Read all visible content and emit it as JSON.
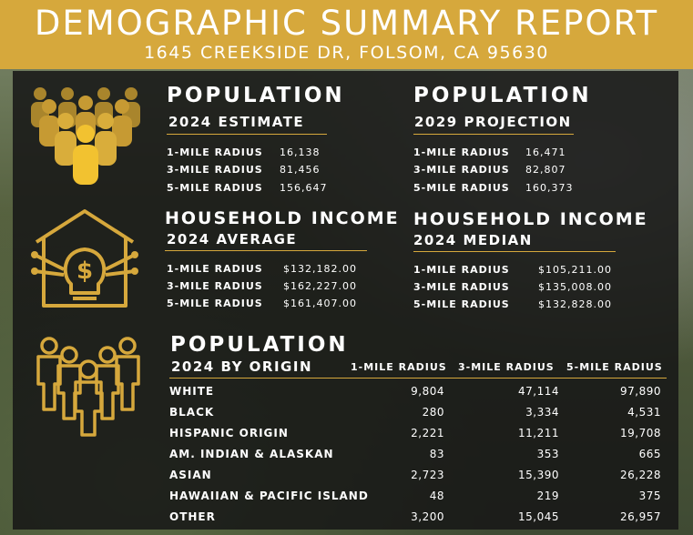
{
  "header": {
    "title": "DEMOGRAPHIC SUMMARY REPORT",
    "address": "1645 CREEKSIDE DR, FOLSOM, CA 95630"
  },
  "colors": {
    "accent": "#d6a83c",
    "panel": "#161616",
    "text": "#ffffff"
  },
  "pop2024": {
    "title": "POPULATION",
    "subtitle": "2024 ESTIMATE",
    "rows": [
      {
        "label": "1-MILE RADIUS",
        "value": "16,138"
      },
      {
        "label": "3-MILE RADIUS",
        "value": "81,456"
      },
      {
        "label": "5-MILE RADIUS",
        "value": "156,647"
      }
    ]
  },
  "pop2029": {
    "title": "POPULATION",
    "subtitle": "2029 PROJECTION",
    "rows": [
      {
        "label": "1-MILE RADIUS",
        "value": "16,471"
      },
      {
        "label": "3-MILE RADIUS",
        "value": "82,807"
      },
      {
        "label": "5-MILE RADIUS",
        "value": "160,373"
      }
    ]
  },
  "income_avg": {
    "title": "HOUSEHOLD INCOME",
    "subtitle": "2024 AVERAGE",
    "rows": [
      {
        "label": "1-MILE RADIUS",
        "value": "$132,182.00"
      },
      {
        "label": "3-MILE RADIUS",
        "value": "$162,227.00"
      },
      {
        "label": "5-MILE RADIUS",
        "value": "$161,407.00"
      }
    ]
  },
  "income_med": {
    "title": "HOUSEHOLD INCOME",
    "subtitle": "2024 MEDIAN",
    "rows": [
      {
        "label": "1-MILE RADIUS",
        "value": "$105,211.00"
      },
      {
        "label": "3-MILE RADIUS",
        "value": "$135,008.00"
      },
      {
        "label": "5-MILE RADIUS",
        "value": "$132,828.00"
      }
    ]
  },
  "origin": {
    "title": "POPULATION",
    "subtitle": "2024 BY ORIGIN",
    "columns": [
      "1-MILE RADIUS",
      "3-MILE RADIUS",
      "5-MILE RADIUS"
    ],
    "rows": [
      {
        "label": "WHITE",
        "values": [
          "9,804",
          "47,114",
          "97,890"
        ]
      },
      {
        "label": "BLACK",
        "values": [
          "280",
          "3,334",
          "4,531"
        ]
      },
      {
        "label": "HISPANIC ORIGIN",
        "values": [
          "2,221",
          "11,211",
          "19,708"
        ]
      },
      {
        "label": "AM. INDIAN & ALASKAN",
        "values": [
          "83",
          "353",
          "665"
        ]
      },
      {
        "label": "ASIAN",
        "values": [
          "2,723",
          "15,390",
          "26,228"
        ]
      },
      {
        "label": "HAWAIIAN & PACIFIC ISLAND",
        "values": [
          "48",
          "219",
          "375"
        ]
      },
      {
        "label": "OTHER",
        "values": [
          "3,200",
          "15,045",
          "26,957"
        ]
      }
    ]
  },
  "icons": [
    "crowd-icon",
    "house-income-icon",
    "group-people-icon"
  ]
}
